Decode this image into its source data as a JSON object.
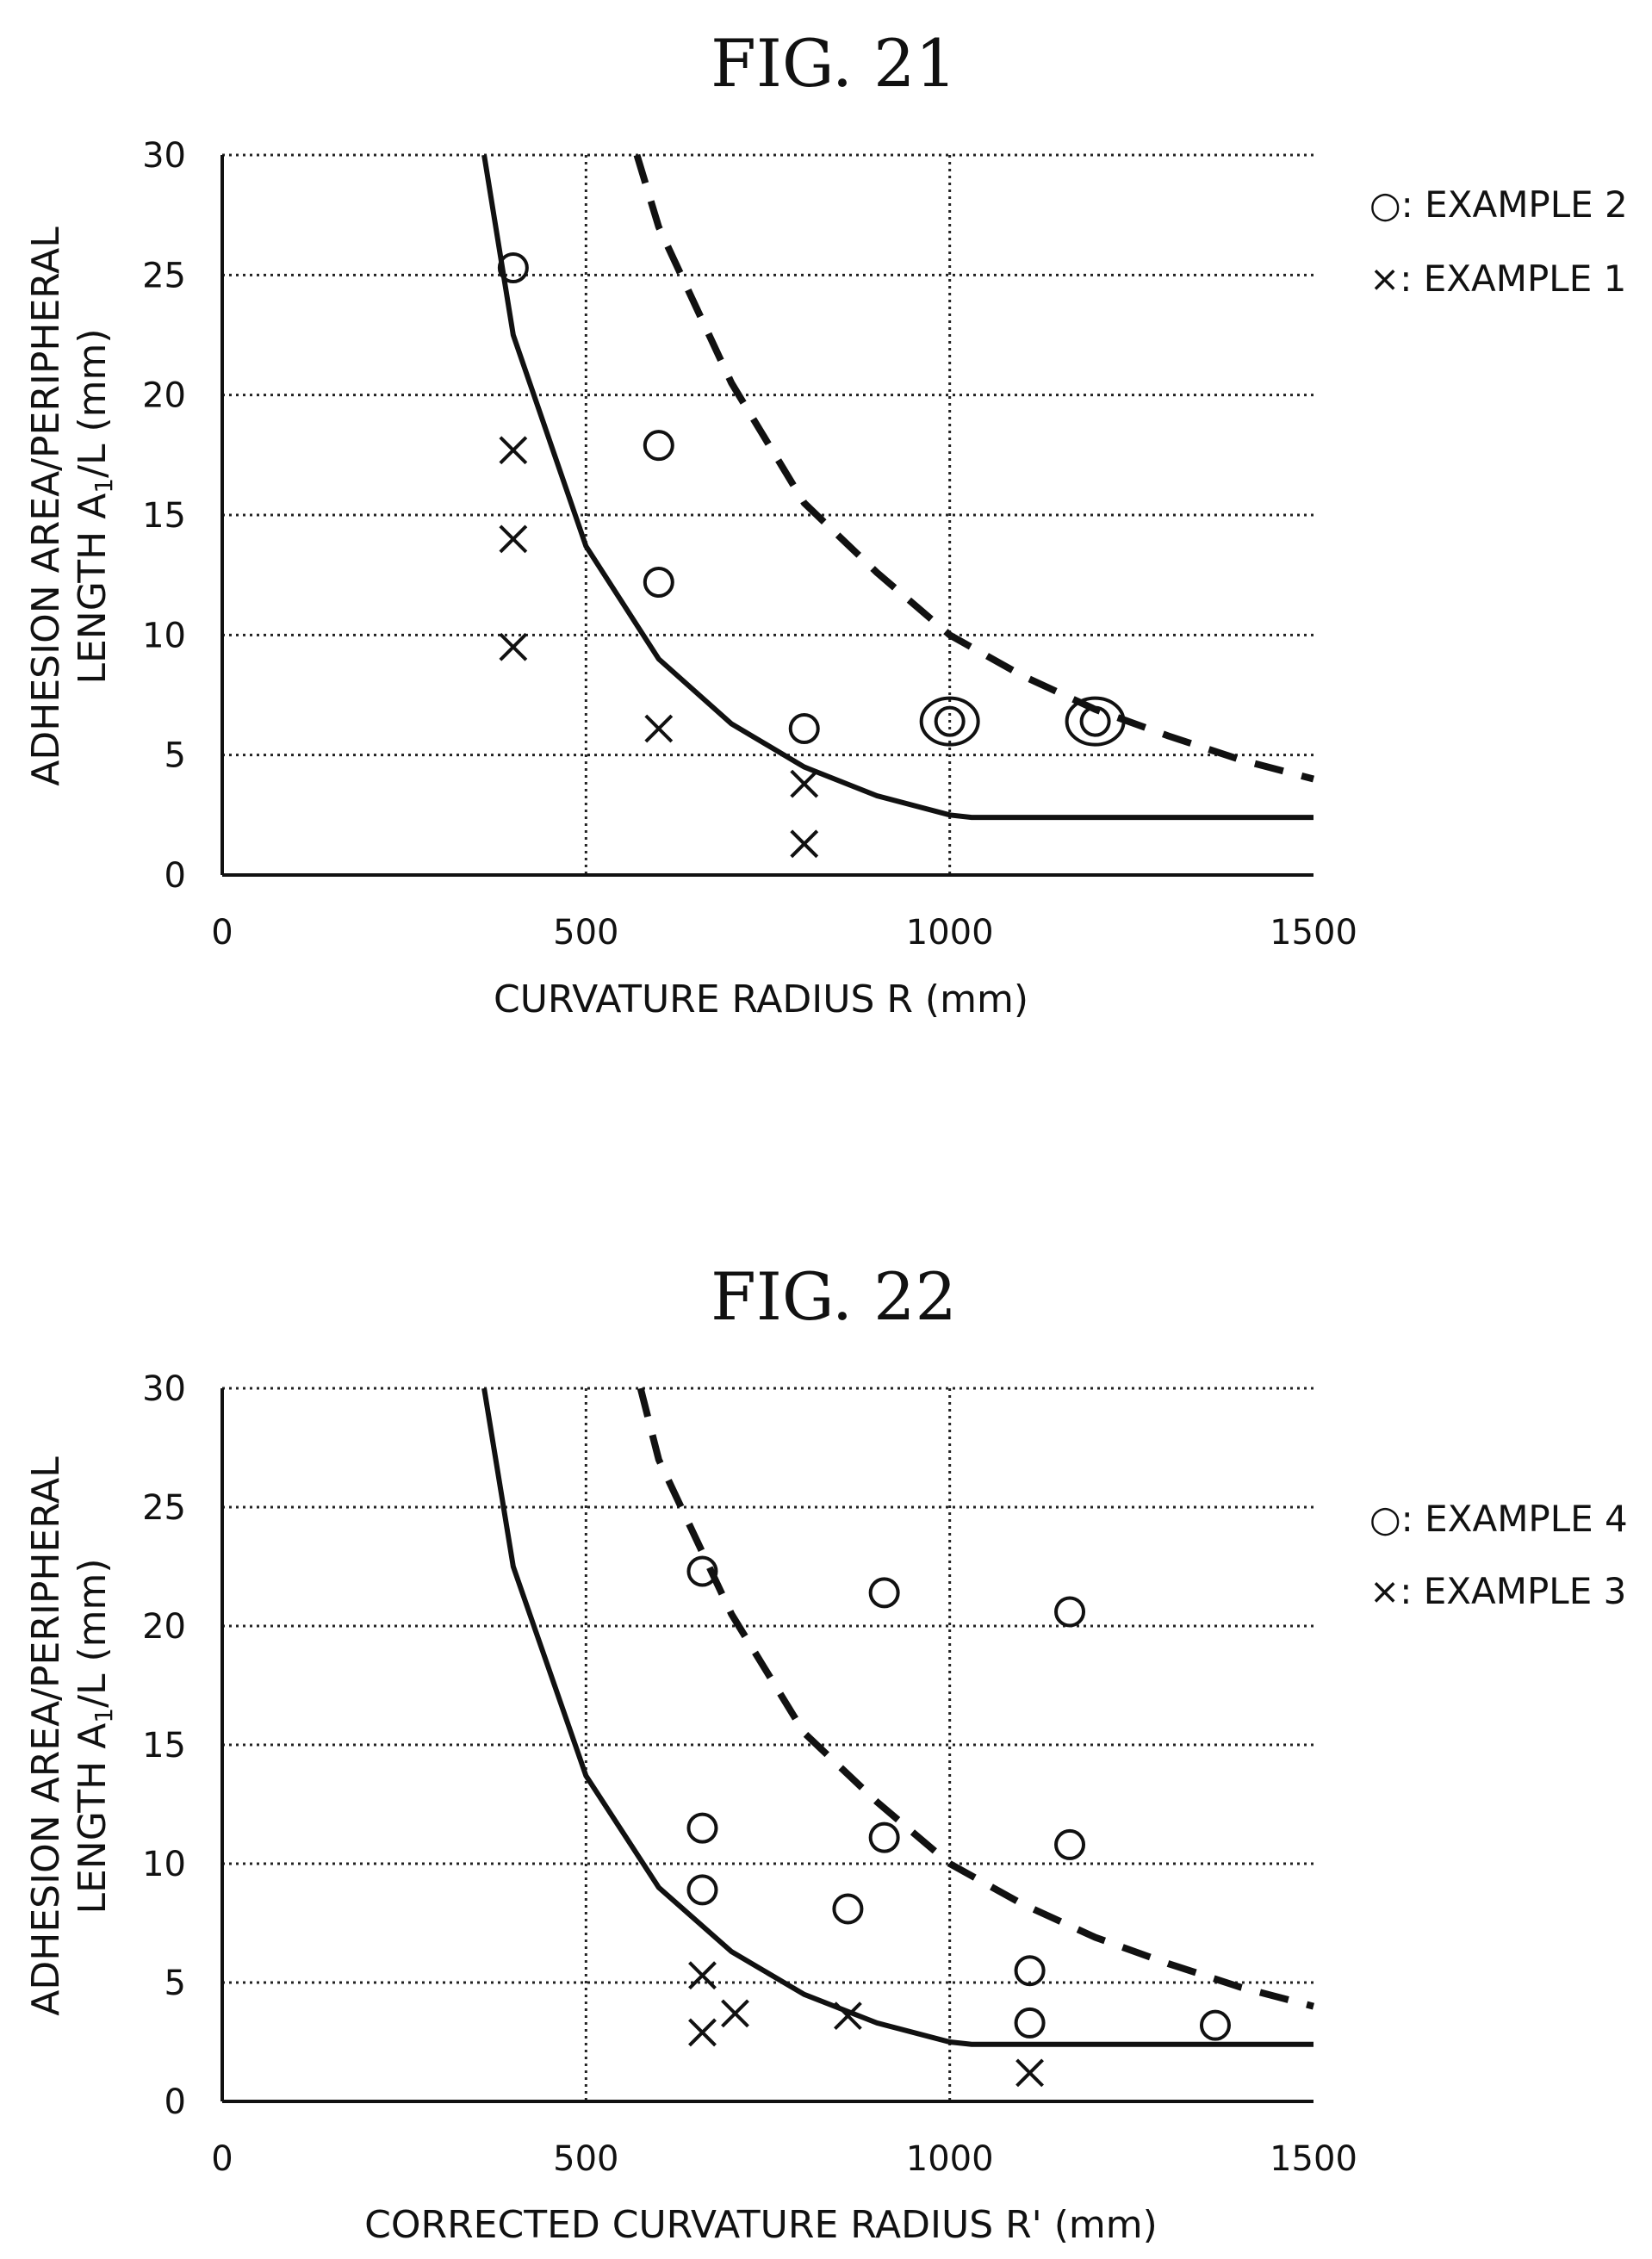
{
  "chart_data": [
    {
      "type": "scatter",
      "title": "FIG. 21",
      "xlabel": "CURVATURE RADIUS R (mm)",
      "ylabel_line1": "ADHESION AREA/PERIPHERAL",
      "ylabel_line2_main": "LENGTH A",
      "ylabel_line2_sub": "1",
      "ylabel_line2_tail": "/L (mm)",
      "xlim": [
        0,
        1500
      ],
      "ylim": [
        0,
        30
      ],
      "xticks": [
        "0",
        "500",
        "1000",
        "1500"
      ],
      "yticks": [
        "0",
        "5",
        "10",
        "15",
        "20",
        "25",
        "30"
      ],
      "grid": true,
      "legend_position": "right",
      "legend": [
        {
          "symbol": "circle",
          "text": "○: EXAMPLE 2"
        },
        {
          "symbol": "x",
          "text": "×: EXAMPLE 1"
        }
      ],
      "series": [
        {
          "name": "EXAMPLE 2",
          "marker": "circle",
          "x": [
            400,
            600,
            600,
            800,
            1000,
            1200
          ],
          "y": [
            25.3,
            17.9,
            12.2,
            6.1,
            6.4,
            6.4
          ],
          "double_ring": [
            false,
            false,
            false,
            false,
            true,
            true
          ]
        },
        {
          "name": "EXAMPLE 1",
          "marker": "x",
          "x": [
            400,
            400,
            400,
            600,
            800,
            800
          ],
          "y": [
            17.7,
            14.0,
            9.5,
            6.1,
            3.8,
            1.3
          ]
        }
      ],
      "solid_curve": {
        "x": [
          360,
          400,
          500,
          600,
          700,
          800,
          900,
          1000,
          1030,
          1500
        ],
        "y": [
          30,
          22.5,
          13.7,
          9.0,
          6.3,
          4.5,
          3.3,
          2.5,
          2.4,
          2.4
        ]
      },
      "dashed_curve": {
        "x": [
          570,
          600,
          700,
          800,
          900,
          1000,
          1100,
          1200,
          1300,
          1400,
          1500
        ],
        "y": [
          30,
          27,
          20.5,
          15.5,
          12.6,
          10.0,
          8.3,
          6.9,
          5.8,
          4.8,
          4.0
        ]
      }
    },
    {
      "type": "scatter",
      "title": "FIG. 22",
      "xlabel": "CORRECTED CURVATURE RADIUS R' (mm)",
      "ylabel_line1": "ADHESION AREA/PERIPHERAL",
      "ylabel_line2_main": "LENGTH A",
      "ylabel_line2_sub": "1",
      "ylabel_line2_tail": "/L (mm)",
      "xlim": [
        0,
        1500
      ],
      "ylim": [
        0,
        30
      ],
      "xticks": [
        "0",
        "500",
        "1000",
        "1500"
      ],
      "yticks": [
        "0",
        "5",
        "10",
        "15",
        "20",
        "25",
        "30"
      ],
      "grid": true,
      "legend_position": "right",
      "legend": [
        {
          "symbol": "circle",
          "text": "○: EXAMPLE 4"
        },
        {
          "symbol": "x",
          "text": "×: EXAMPLE 3"
        }
      ],
      "series": [
        {
          "name": "EXAMPLE 4",
          "marker": "circle",
          "x": [
            660,
            910,
            1165,
            660,
            910,
            1165,
            660,
            860,
            1110,
            1110,
            1365
          ],
          "y": [
            22.3,
            21.4,
            20.6,
            11.5,
            11.1,
            10.8,
            8.9,
            8.1,
            5.5,
            3.3,
            3.2
          ],
          "double_ring": [
            false,
            false,
            false,
            false,
            false,
            false,
            false,
            false,
            false,
            false,
            false
          ]
        },
        {
          "name": "EXAMPLE 3",
          "marker": "x",
          "x": [
            660,
            660,
            705,
            860,
            1110
          ],
          "y": [
            5.3,
            2.9,
            3.7,
            3.6,
            1.2
          ]
        }
      ],
      "solid_curve": {
        "x": [
          360,
          400,
          500,
          600,
          700,
          800,
          900,
          1000,
          1030,
          1500
        ],
        "y": [
          30,
          22.5,
          13.7,
          9.0,
          6.3,
          4.5,
          3.3,
          2.5,
          2.4,
          2.4
        ]
      },
      "dashed_curve": {
        "x": [
          575,
          600,
          700,
          800,
          900,
          1000,
          1100,
          1200,
          1300,
          1400,
          1500
        ],
        "y": [
          30,
          27,
          20.5,
          15.5,
          12.6,
          10.0,
          8.3,
          6.9,
          5.8,
          4.8,
          4.0
        ]
      }
    }
  ]
}
